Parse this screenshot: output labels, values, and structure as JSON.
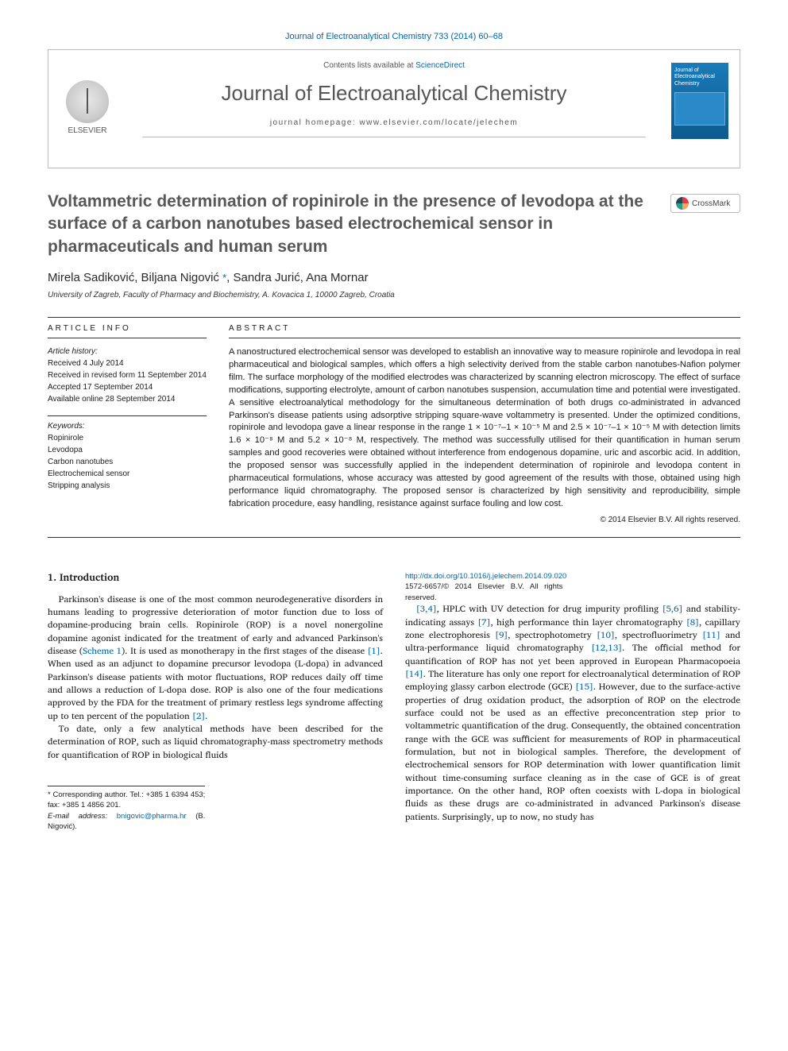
{
  "journal_citation": "Journal of Electroanalytical Chemistry 733 (2014) 60–68",
  "header": {
    "contents_prefix": "Contents lists available at ",
    "contents_link": "ScienceDirect",
    "journal_name": "Journal of Electroanalytical Chemistry",
    "homepage_label": "journal homepage: www.elsevier.com/locate/jelechem",
    "publisher_label": "ELSEVIER",
    "cover_title": "Journal of Electroanalytical Chemistry"
  },
  "crossmark_label": "CrossMark",
  "article": {
    "title": "Voltammetric determination of ropinirole in the presence of levodopa at the surface of a carbon nanotubes based electrochemical sensor in pharmaceuticals and human serum",
    "authors_line": "Mirela Sadiković, Biljana Nigović *, Sandra Jurić, Ana Mornar",
    "corr_symbol": "*",
    "affiliation": "University of Zagreb, Faculty of Pharmacy and Biochemistry, A. Kovacica 1, 10000 Zagreb, Croatia"
  },
  "info": {
    "heading": "ARTICLE INFO",
    "history_label": "Article history:",
    "received": "Received 4 July 2014",
    "revised": "Received in revised form 11 September 2014",
    "accepted": "Accepted 17 September 2014",
    "online": "Available online 28 September 2014",
    "keywords_label": "Keywords:",
    "keywords": [
      "Ropinirole",
      "Levodopa",
      "Carbon nanotubes",
      "Electrochemical sensor",
      "Stripping analysis"
    ]
  },
  "abstract": {
    "heading": "ABSTRACT",
    "text": "A nanostructured electrochemical sensor was developed to establish an innovative way to measure ropinirole and levodopa in real pharmaceutical and biological samples, which offers a high selectivity derived from the stable carbon nanotubes-Nafion polymer film. The surface morphology of the modified electrodes was characterized by scanning electron microscopy. The effect of surface modifications, supporting electrolyte, amount of carbon nanotubes suspension, accumulation time and potential were investigated. A sensitive electroanalytical methodology for the simultaneous determination of both drugs co-administrated in advanced Parkinson's disease patients using adsorptive stripping square-wave voltammetry is presented. Under the optimized conditions, ropinirole and levodopa gave a linear response in the range 1 × 10⁻⁷–1 × 10⁻⁵ M and 2.5 × 10⁻⁷–1 × 10⁻⁵ M with detection limits 1.6 × 10⁻⁸ M and 5.2 × 10⁻⁸ M, respectively. The method was successfully utilised for their quantification in human serum samples and good recoveries were obtained without interference from endogenous dopamine, uric and ascorbic acid. In addition, the proposed sensor was successfully applied in the independent determination of ropinirole and levodopa content in pharmaceutical formulations, whose accuracy was attested by good agreement of the results with those, obtained using high performance liquid chromatography. The proposed sensor is characterized by high sensitivity and reproducibility, simple fabrication procedure, easy handling, resistance against surface fouling and low cost.",
    "copyright": "© 2014 Elsevier B.V. All rights reserved."
  },
  "body": {
    "section_heading": "1. Introduction",
    "para1": "Parkinson's disease is one of the most common neurodegenerative disorders in humans leading to progressive deterioration of motor function due to loss of dopamine-producing brain cells. Ropinirole (ROP) is a novel nonergoline dopamine agonist indicated for the treatment of early and advanced Parkinson's disease (Scheme 1). It is used as monotherapy in the first stages of the disease [1]. When used as an adjunct to dopamine precursor levodopa (L-dopa) in advanced Parkinson's disease patients with motor fluctuations, ROP reduces daily off time and allows a reduction of L-dopa dose. ROP is also one of the four medications approved by the FDA for the treatment of primary restless legs syndrome affecting up to ten percent of the population [2].",
    "para2": "To date, only a few analytical methods have been described for the determination of ROP, such as liquid chromatography-mass spectrometry methods for quantification of ROP in biological fluids",
    "para3": "[3,4], HPLC with UV detection for drug impurity profiling [5,6] and stability-indicating assays [7], high performance thin layer chromatography [8], capillary zone electrophoresis [9], spectrophotometry [10], spectrofluorimetry [11] and ultra-performance liquid chromatography [12,13]. The official method for quantification of ROP has not yet been approved in European Pharmacopoeia [14]. The literature has only one report for electroanalytical determination of ROP employing glassy carbon electrode (GCE) [15]. However, due to the surface-active properties of drug oxidation product, the adsorption of ROP on the electrode surface could not be used as an effective preconcentration step prior to voltammetric quantification of the drug. Consequently, the obtained concentration range with the GCE was sufficient for measurements of ROP in pharmaceutical formulation, but not in biological samples. Therefore, the development of electrochemical sensors for ROP determination with lower quantification limit without time-consuming surface cleaning as in the case of GCE is of great importance. On the other hand, ROP often coexists with L-dopa in biological fluids as these drugs are co-administrated in advanced Parkinson's disease patients. Surprisingly, up to now, no study has"
  },
  "footnote": {
    "corr_author": "* Corresponding author. Tel.: +385 1 6394 453; fax: +385 1 4856 201.",
    "email_label": "E-mail address: ",
    "email": "bnigovic@pharma.hr",
    "email_name": " (B. Nigović)."
  },
  "bottom": {
    "doi": "http://dx.doi.org/10.1016/j.jelechem.2014.09.020",
    "issn_copy": "1572-6657/© 2014 Elsevier B.V. All rights reserved."
  },
  "colors": {
    "link": "#0066aa",
    "heading": "#585858",
    "border": "#bbbbbb",
    "text": "#1a1a1a"
  }
}
